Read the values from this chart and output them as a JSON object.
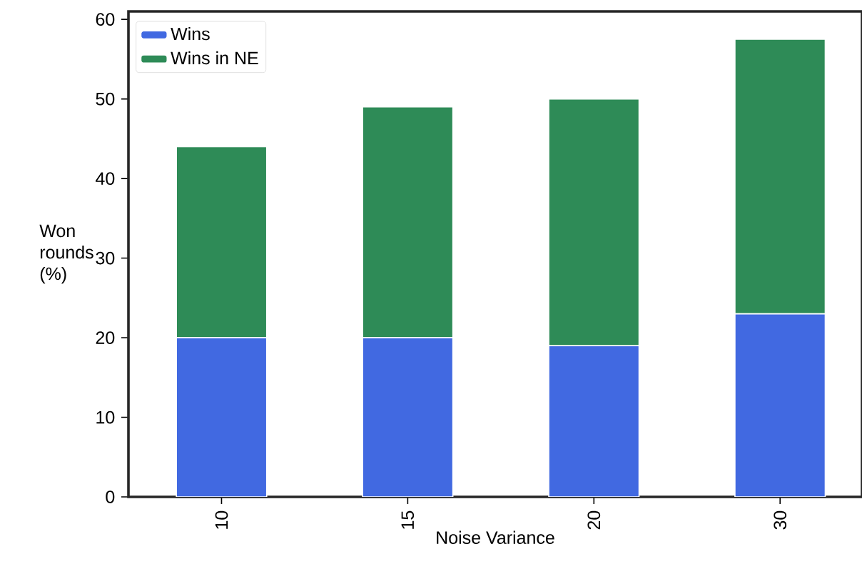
{
  "chart_data": {
    "type": "bar",
    "stacked": true,
    "xlabel": "Noise Variance",
    "ylabel": "Won rounds (%)",
    "categories": [
      "10",
      "15",
      "20",
      "30"
    ],
    "series": [
      {
        "name": "Wins",
        "color": "#4169e1",
        "values": [
          20,
          20,
          19,
          23
        ]
      },
      {
        "name": "Wins in NE",
        "color": "#2e8b57",
        "values": [
          24,
          29,
          31,
          34.5
        ]
      }
    ],
    "ylim": [
      0,
      61
    ],
    "yticks": [
      0,
      10,
      20,
      30,
      40,
      50,
      60
    ],
    "grid": false,
    "legend": "top left"
  }
}
